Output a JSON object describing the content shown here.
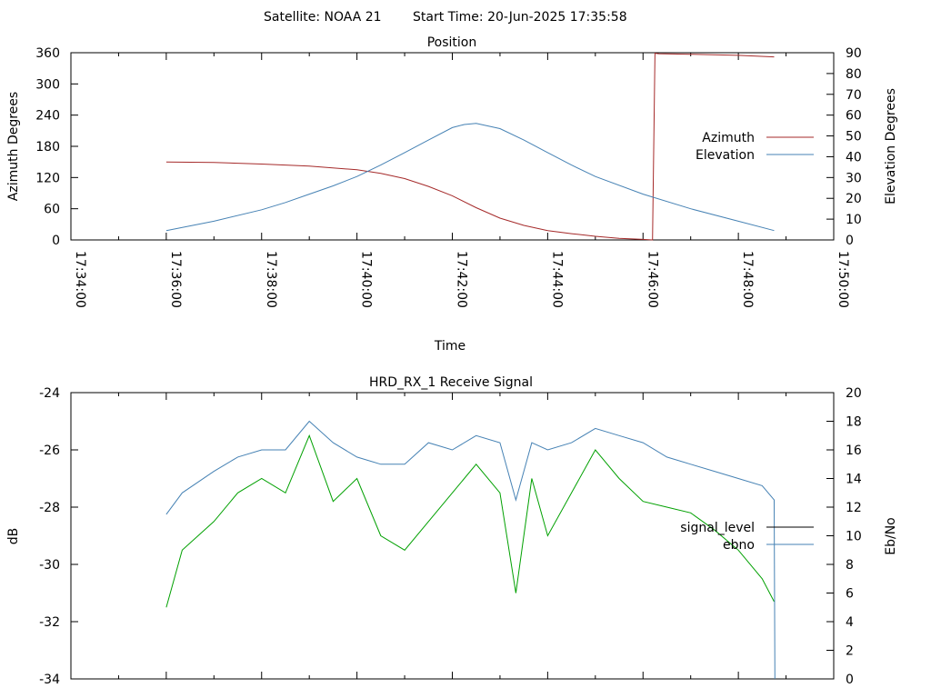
{
  "header": {
    "satellite_label": "Satellite: NOAA 21",
    "start_label": "Start Time: 20-Jun-2025 17:35:58"
  },
  "chart_data": [
    {
      "type": "line",
      "title": "Position",
      "xlabel": "Time",
      "ylabel": "Azimuth Degrees",
      "y2label": "Elevation Degrees",
      "xlim": [
        "17:34:00",
        "17:50:00"
      ],
      "x_ticks": [
        "17:34:00",
        "17:36:00",
        "17:38:00",
        "17:40:00",
        "17:42:00",
        "17:44:00",
        "17:46:00",
        "17:48:00",
        "17:50:00"
      ],
      "ylim": [
        0,
        360
      ],
      "y_ticks": [
        "0",
        "60",
        "120",
        "180",
        "240",
        "300",
        "360"
      ],
      "y2lim": [
        0,
        90
      ],
      "y2_ticks": [
        "0",
        "10",
        "20",
        "30",
        "40",
        "50",
        "60",
        "70",
        "80",
        "90"
      ],
      "legend_placement": "right",
      "series": [
        {
          "name": "Azimuth",
          "axis": "y",
          "color": "#a52a2a",
          "x": [
            "17:36:00",
            "17:37:00",
            "17:38:00",
            "17:39:00",
            "17:40:00",
            "17:40:30",
            "17:41:00",
            "17:41:30",
            "17:42:00",
            "17:42:30",
            "17:43:00",
            "17:43:30",
            "17:44:00",
            "17:44:30",
            "17:45:00",
            "17:45:30",
            "17:46:00",
            "17:46:12",
            "17:46:15",
            "17:46:20",
            "17:47:00",
            "17:48:00",
            "17:48:45"
          ],
          "values": [
            150,
            149,
            146,
            142,
            135,
            128,
            118,
            103,
            85,
            62,
            42,
            28,
            18,
            12,
            7,
            3,
            1,
            0,
            359,
            358,
            357,
            355,
            352
          ]
        },
        {
          "name": "Elevation",
          "axis": "y2",
          "color": "#4682b4",
          "x": [
            "17:36:00",
            "17:37:00",
            "17:38:00",
            "17:38:30",
            "17:39:00",
            "17:39:30",
            "17:40:00",
            "17:40:30",
            "17:41:00",
            "17:41:30",
            "17:42:00",
            "17:42:15",
            "17:42:30",
            "17:43:00",
            "17:43:30",
            "17:44:00",
            "17:44:30",
            "17:45:00",
            "17:46:00",
            "17:47:00",
            "17:48:00",
            "17:48:45"
          ],
          "values": [
            4.5,
            9,
            14.5,
            18,
            22,
            26,
            30.5,
            36,
            42,
            48,
            54,
            55.5,
            56,
            53.5,
            48,
            42,
            36,
            30.5,
            22,
            15,
            9,
            4.5
          ]
        }
      ]
    },
    {
      "type": "line",
      "title": "HRD_RX_1 Receive Signal",
      "xlabel": "",
      "ylabel": "dB",
      "y2label": "Eb/No",
      "xlim": [
        "17:34:00",
        "17:50:00"
      ],
      "ylim": [
        -34,
        -24
      ],
      "y_ticks": [
        "-24",
        "-26",
        "-28",
        "-30",
        "-32",
        "-34"
      ],
      "y2lim": [
        0,
        20
      ],
      "y2_ticks": [
        "0",
        "2",
        "4",
        "6",
        "8",
        "10",
        "12",
        "14",
        "16",
        "18",
        "20"
      ],
      "legend_placement": "right",
      "series": [
        {
          "name": "signal_level",
          "legend_color": "#000000",
          "plot_color": "#00a000",
          "axis": "y",
          "x": [
            "17:36:00",
            "17:36:20",
            "17:37:00",
            "17:37:30",
            "17:38:00",
            "17:38:30",
            "17:39:00",
            "17:39:30",
            "17:40:00",
            "17:40:30",
            "17:41:00",
            "17:41:30",
            "17:42:00",
            "17:42:30",
            "17:43:00",
            "17:43:20",
            "17:43:40",
            "17:44:00",
            "17:44:30",
            "17:45:00",
            "17:45:30",
            "17:46:00",
            "17:46:30",
            "17:47:00",
            "17:47:30",
            "17:48:00",
            "17:48:30",
            "17:48:45"
          ],
          "values": [
            -31.5,
            -29.5,
            -28.5,
            -27.5,
            -27.0,
            -27.5,
            -25.5,
            -27.8,
            -27.0,
            -29.0,
            -29.5,
            -28.5,
            -27.5,
            -26.5,
            -27.5,
            -31.0,
            -27.0,
            -29.0,
            -27.5,
            -26.0,
            -27.0,
            -27.8,
            -28.0,
            -28.2,
            -28.8,
            -29.5,
            -30.5,
            -31.3
          ]
        },
        {
          "name": "ebno",
          "color": "#4682b4",
          "axis": "y2",
          "x": [
            "17:36:00",
            "17:36:20",
            "17:37:00",
            "17:37:30",
            "17:38:00",
            "17:38:30",
            "17:39:00",
            "17:39:30",
            "17:40:00",
            "17:40:30",
            "17:41:00",
            "17:41:30",
            "17:42:00",
            "17:42:30",
            "17:43:00",
            "17:43:20",
            "17:43:40",
            "17:44:00",
            "17:44:30",
            "17:45:00",
            "17:45:30",
            "17:46:00",
            "17:46:30",
            "17:47:00",
            "17:47:30",
            "17:48:00",
            "17:48:30",
            "17:48:45",
            "17:48:46"
          ],
          "values": [
            11.5,
            13.0,
            14.5,
            15.5,
            16.0,
            16.0,
            18.0,
            16.5,
            15.5,
            15.0,
            15.0,
            16.5,
            16.0,
            17.0,
            16.5,
            12.5,
            16.5,
            16.0,
            16.5,
            17.5,
            17.0,
            16.5,
            15.5,
            15.0,
            14.5,
            14.0,
            13.5,
            12.5,
            0
          ]
        }
      ]
    }
  ]
}
